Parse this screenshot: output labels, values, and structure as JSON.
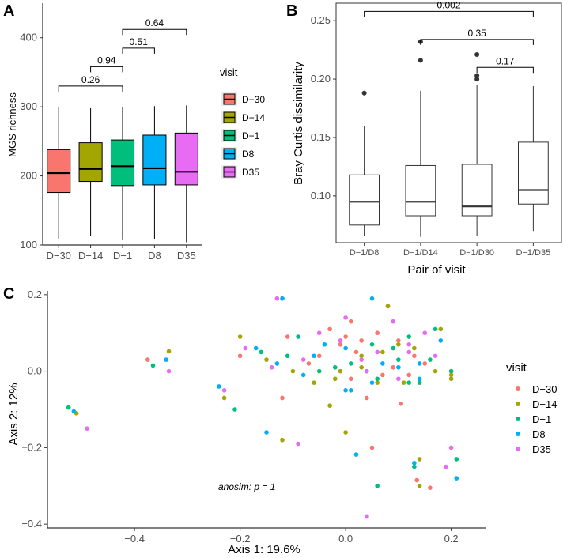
{
  "chart_data": [
    {
      "panel": "A",
      "type": "boxplot",
      "ylabel": "MGS richness",
      "xlabel": "",
      "ylim": [
        100,
        450
      ],
      "yticks": [
        100,
        200,
        300,
        400
      ],
      "categories": [
        "D−30",
        "D−14",
        "D−1",
        "D8",
        "D35"
      ],
      "boxes": [
        {
          "min": 108,
          "q1": 176,
          "median": 204,
          "q3": 238,
          "max": 300
        },
        {
          "min": 113,
          "q1": 192,
          "median": 210,
          "q3": 248,
          "max": 298
        },
        {
          "min": 107,
          "q1": 186,
          "median": 214,
          "q3": 252,
          "max": 300
        },
        {
          "min": 108,
          "q1": 187,
          "median": 211,
          "q3": 259,
          "max": 301
        },
        {
          "min": 104,
          "q1": 187,
          "median": 206,
          "q3": 262,
          "max": 302
        }
      ],
      "comparisons": [
        {
          "from": 0,
          "to": 2,
          "label": "0.26",
          "y": 330
        },
        {
          "from": 1,
          "to": 2,
          "label": "0.94",
          "y": 358
        },
        {
          "from": 2,
          "to": 3,
          "label": "0.51",
          "y": 385
        },
        {
          "from": 2,
          "to": 4,
          "label": "0.64",
          "y": 412
        }
      ],
      "legend": {
        "title": "visit",
        "entries": [
          "D−30",
          "D−14",
          "D−1",
          "D8",
          "D35"
        ],
        "colors": [
          "#F8766D",
          "#A3A500",
          "#00BF7D",
          "#00B0F6",
          "#E76BF3"
        ]
      }
    },
    {
      "panel": "B",
      "type": "boxplot",
      "ylabel": "Bray Curtis dissimilarity",
      "xlabel": "Pair of visit",
      "ylim": [
        0.06,
        0.265
      ],
      "yticks": [
        0.1,
        0.15,
        0.2,
        0.25
      ],
      "ytick_labels": [
        "0.10",
        "0.15",
        "0.20",
        "0.25"
      ],
      "categories": [
        "D−1/D8",
        "D−1/D14",
        "D−1/D30",
        "D−1/D35"
      ],
      "boxes": [
        {
          "min": 0.066,
          "q1": 0.075,
          "median": 0.095,
          "q3": 0.118,
          "max": 0.16,
          "outliers": [
            0.188
          ]
        },
        {
          "min": 0.065,
          "q1": 0.083,
          "median": 0.095,
          "q3": 0.126,
          "max": 0.19,
          "outliers": [
            0.216,
            0.232
          ]
        },
        {
          "min": 0.066,
          "q1": 0.083,
          "median": 0.091,
          "q3": 0.127,
          "max": 0.195,
          "outliers": [
            0.2,
            0.203,
            0.221
          ]
        },
        {
          "min": 0.07,
          "q1": 0.093,
          "median": 0.105,
          "q3": 0.146,
          "max": 0.194,
          "outliers": []
        }
      ],
      "comparisons": [
        {
          "from": 0,
          "to": 3,
          "label": "0.002",
          "y": 0.258
        },
        {
          "from": 1,
          "to": 3,
          "label": "0.35",
          "y": 0.234
        },
        {
          "from": 2,
          "to": 3,
          "label": "0.17",
          "y": 0.21
        }
      ]
    },
    {
      "panel": "C",
      "type": "scatter",
      "xlabel": "Axis 1: 19.6%",
      "ylabel": "Axis 2: 12%",
      "xlim": [
        -0.565,
        0.265
      ],
      "ylim": [
        -0.41,
        0.21
      ],
      "xticks": [
        -0.4,
        -0.2,
        0.0,
        0.2
      ],
      "xtick_labels": [
        "−0.4",
        "−0.2",
        "0.0",
        "0.2"
      ],
      "yticks": [
        -0.4,
        -0.2,
        0.0,
        0.2
      ],
      "ytick_labels": [
        "−0.4",
        "−0.2",
        "0.0",
        "0.2"
      ],
      "annotation": "anosim: p = 1",
      "legend": {
        "title": "visit",
        "entries": [
          "D−30",
          "D−14",
          "D−1",
          "D8",
          "D35"
        ],
        "colors": [
          "#F8766D",
          "#A3A500",
          "#00BF7D",
          "#00B0F6",
          "#E76BF3"
        ]
      },
      "series": [
        {
          "name": "D−30",
          "points": [
            [
              -0.375,
              0.03
            ],
            [
              -0.12,
              -0.07
            ],
            [
              -0.11,
              0.09
            ],
            [
              -0.05,
              0.04
            ],
            [
              -0.03,
              0.11
            ],
            [
              -0.01,
              0.07
            ],
            [
              0.01,
              0.13
            ],
            [
              0.03,
              0.08
            ],
            [
              0.06,
              0.1
            ],
            [
              0.08,
              0.17
            ],
            [
              0.1,
              0.08
            ],
            [
              0.12,
              -0.01
            ],
            [
              0.15,
              0.02
            ],
            [
              0.2,
              0.0
            ],
            [
              0.04,
              -0.07
            ],
            [
              0.05,
              -0.2
            ],
            [
              0.105,
              -0.085
            ],
            [
              0.135,
              -0.285
            ],
            [
              0.16,
              -0.305
            ],
            [
              0.02,
              0.05
            ],
            [
              -0.07,
              0.02
            ],
            [
              0.01,
              -0.02
            ],
            [
              0.09,
              0.01
            ],
            [
              -0.2,
              0.04
            ],
            [
              0.07,
              -0.01
            ],
            [
              0.0,
              0.09
            ],
            [
              0.13,
              0.04
            ]
          ]
        },
        {
          "name": "D−14",
          "points": [
            [
              -0.335,
              0.052
            ],
            [
              -0.51,
              -0.11
            ],
            [
              -0.23,
              -0.07
            ],
            [
              -0.2,
              0.09
            ],
            [
              -0.15,
              0.03
            ],
            [
              -0.12,
              -0.18
            ],
            [
              -0.06,
              -0.03
            ],
            [
              -0.02,
              -0.02
            ],
            [
              0.03,
              0.01
            ],
            [
              0.07,
              0.05
            ],
            [
              0.1,
              0.07
            ],
            [
              0.13,
              0.06
            ],
            [
              0.18,
              0.11
            ],
            [
              0.2,
              -0.01
            ],
            [
              0.14,
              -0.23
            ],
            [
              0.14,
              -0.3
            ],
            [
              0.0,
              -0.16
            ],
            [
              0.06,
              -0.03
            ],
            [
              -0.01,
              0.0
            ],
            [
              0.11,
              -0.03
            ],
            [
              0.08,
              0.17
            ],
            [
              0.03,
              0.04
            ],
            [
              -0.1,
              0.0
            ],
            [
              0.17,
              0.0
            ],
            [
              0.2,
              -0.02
            ],
            [
              -0.03,
              -0.09
            ]
          ]
        },
        {
          "name": "D−1",
          "points": [
            [
              -0.365,
              0.015
            ],
            [
              -0.525,
              -0.095
            ],
            [
              -0.21,
              -0.1
            ],
            [
              -0.16,
              0.05
            ],
            [
              -0.11,
              0.04
            ],
            [
              -0.05,
              0.0
            ],
            [
              0.01,
              0.02
            ],
            [
              0.06,
              -0.02
            ],
            [
              0.09,
              0.06
            ],
            [
              0.12,
              0.09
            ],
            [
              0.16,
              0.03
            ],
            [
              0.17,
              0.11
            ],
            [
              0.21,
              -0.23
            ],
            [
              0.06,
              -0.3
            ],
            [
              0.13,
              -0.25
            ],
            [
              0.14,
              -0.03
            ],
            [
              0.05,
              0.07
            ],
            [
              -0.09,
              0.09
            ],
            [
              0.2,
              0.0
            ],
            [
              -0.02,
              0.01
            ],
            [
              0.04,
              0.0
            ],
            [
              0.12,
              -0.03
            ],
            [
              0.1,
              0.03
            ]
          ]
        },
        {
          "name": "D8",
          "points": [
            [
              -0.34,
              0.03
            ],
            [
              -0.515,
              -0.105
            ],
            [
              -0.24,
              -0.04
            ],
            [
              -0.17,
              0.06
            ],
            [
              -0.13,
              0.02
            ],
            [
              -0.08,
              -0.01
            ],
            [
              -0.04,
              0.07
            ],
            [
              0.0,
              0.06
            ],
            [
              0.05,
              0.19
            ],
            [
              0.1,
              0.01
            ],
            [
              0.14,
              -0.02
            ],
            [
              0.18,
              0.08
            ],
            [
              0.21,
              -0.28
            ],
            [
              0.04,
              -0.38
            ],
            [
              0.0,
              -0.05
            ],
            [
              0.14,
              0.02
            ],
            [
              0.07,
              0.02
            ],
            [
              -0.06,
              0.04
            ],
            [
              0.01,
              -0.05
            ],
            [
              -0.12,
              0.19
            ],
            [
              0.13,
              -0.24
            ],
            [
              0.05,
              -0.03
            ],
            [
              0.02,
              -0.218
            ],
            [
              -0.15,
              -0.16
            ]
          ]
        },
        {
          "name": "D35",
          "points": [
            [
              -0.335,
              0.0
            ],
            [
              -0.49,
              -0.15
            ],
            [
              -0.23,
              -0.05
            ],
            [
              -0.19,
              0.06
            ],
            [
              -0.14,
              0.01
            ],
            [
              -0.09,
              -0.19
            ],
            [
              -0.05,
              0.1
            ],
            [
              -0.01,
              0.08
            ],
            [
              0.04,
              0.0
            ],
            [
              0.09,
              0.13
            ],
            [
              0.12,
              0.07
            ],
            [
              0.15,
              0.1
            ],
            [
              0.2,
              -0.2
            ],
            [
              0.19,
              -0.25
            ],
            [
              0.04,
              -0.38
            ],
            [
              -0.13,
              0.19
            ],
            [
              0.06,
              0.05
            ],
            [
              0.1,
              -0.02
            ],
            [
              0.17,
              0.04
            ],
            [
              0.0,
              0.14
            ],
            [
              -0.08,
              0.03
            ],
            [
              0.03,
              0.03
            ],
            [
              0.12,
              0.05
            ]
          ]
        }
      ]
    }
  ],
  "panel_labels": [
    "A",
    "B",
    "C"
  ]
}
